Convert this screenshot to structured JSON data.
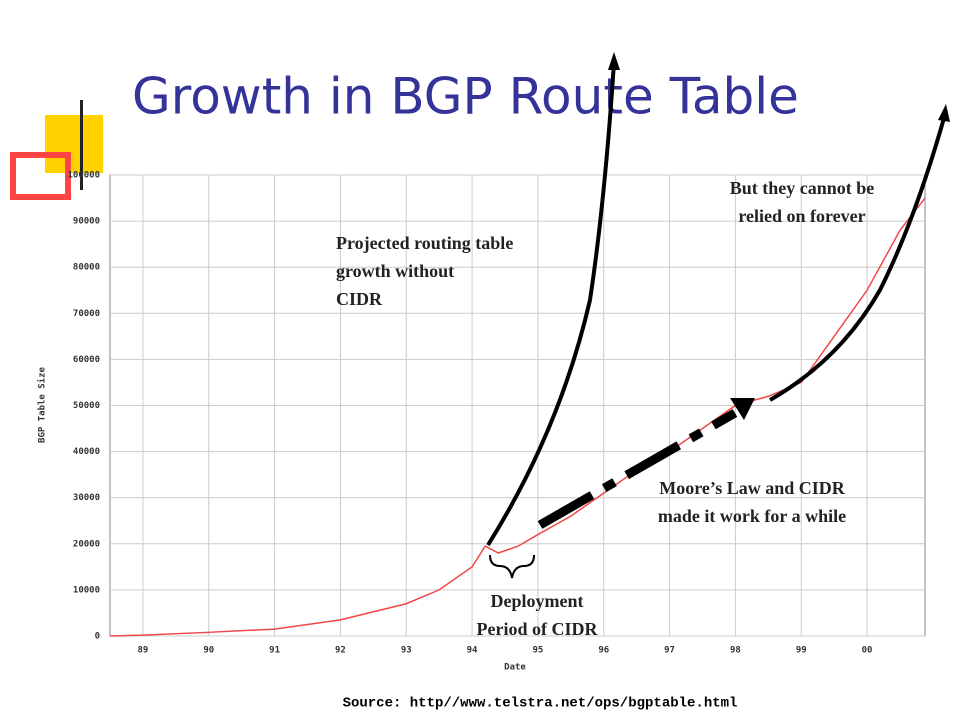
{
  "chart_data": {
    "type": "line",
    "title": "Growth in BGP Route Table",
    "x_label": "Date",
    "y_label": "BGP Table Size",
    "x": [
      1988.5,
      1989,
      1990,
      1991,
      1992,
      1993,
      1993.5,
      1994,
      1994.2,
      1994.4,
      1994.7,
      1995,
      1995.5,
      1996,
      1996.5,
      1997,
      1997.5,
      1998,
      1998.5,
      1999,
      1999.5,
      2000,
      2000.5,
      2000.88
    ],
    "series": [
      {
        "name": "BGP Table Size",
        "color": "#f04848",
        "values": [
          0,
          200,
          800,
          1500,
          3500,
          7000,
          10000,
          15000,
          19500,
          18000,
          19500,
          22000,
          26000,
          31000,
          36000,
          40000,
          45000,
          50000,
          52000,
          55000,
          65000,
          75000,
          88000,
          95000
        ]
      }
    ],
    "xlim": [
      1988.5,
      2000.88
    ],
    "xticks": [
      {
        "value": 1989,
        "label": "89"
      },
      {
        "value": 1990,
        "label": "90"
      },
      {
        "value": 1991,
        "label": "91"
      },
      {
        "value": 1992,
        "label": "92"
      },
      {
        "value": 1993,
        "label": "93"
      },
      {
        "value": 1994,
        "label": "94"
      },
      {
        "value": 1995,
        "label": "95"
      },
      {
        "value": 1996,
        "label": "96"
      },
      {
        "value": 1997,
        "label": "97"
      },
      {
        "value": 1998,
        "label": "98"
      },
      {
        "value": 1999,
        "label": "99"
      },
      {
        "value": 2000,
        "label": "00"
      }
    ],
    "ylim": [
      0,
      100000
    ],
    "yticks": [
      0,
      10000,
      20000,
      30000,
      40000,
      50000,
      60000,
      70000,
      80000,
      90000,
      100000
    ],
    "grid": true,
    "annotations": [
      [
        "Projected routing table",
        "growth without",
        "CIDR"
      ],
      [
        "But they cannot be",
        "relied on forever"
      ],
      [
        "Moore’s Law and CIDR",
        "made it work for a while"
      ],
      [
        "Deployment",
        "Period of CIDR"
      ]
    ],
    "source": "Source: http//www.telstra.net/ops/bgptable.html"
  }
}
